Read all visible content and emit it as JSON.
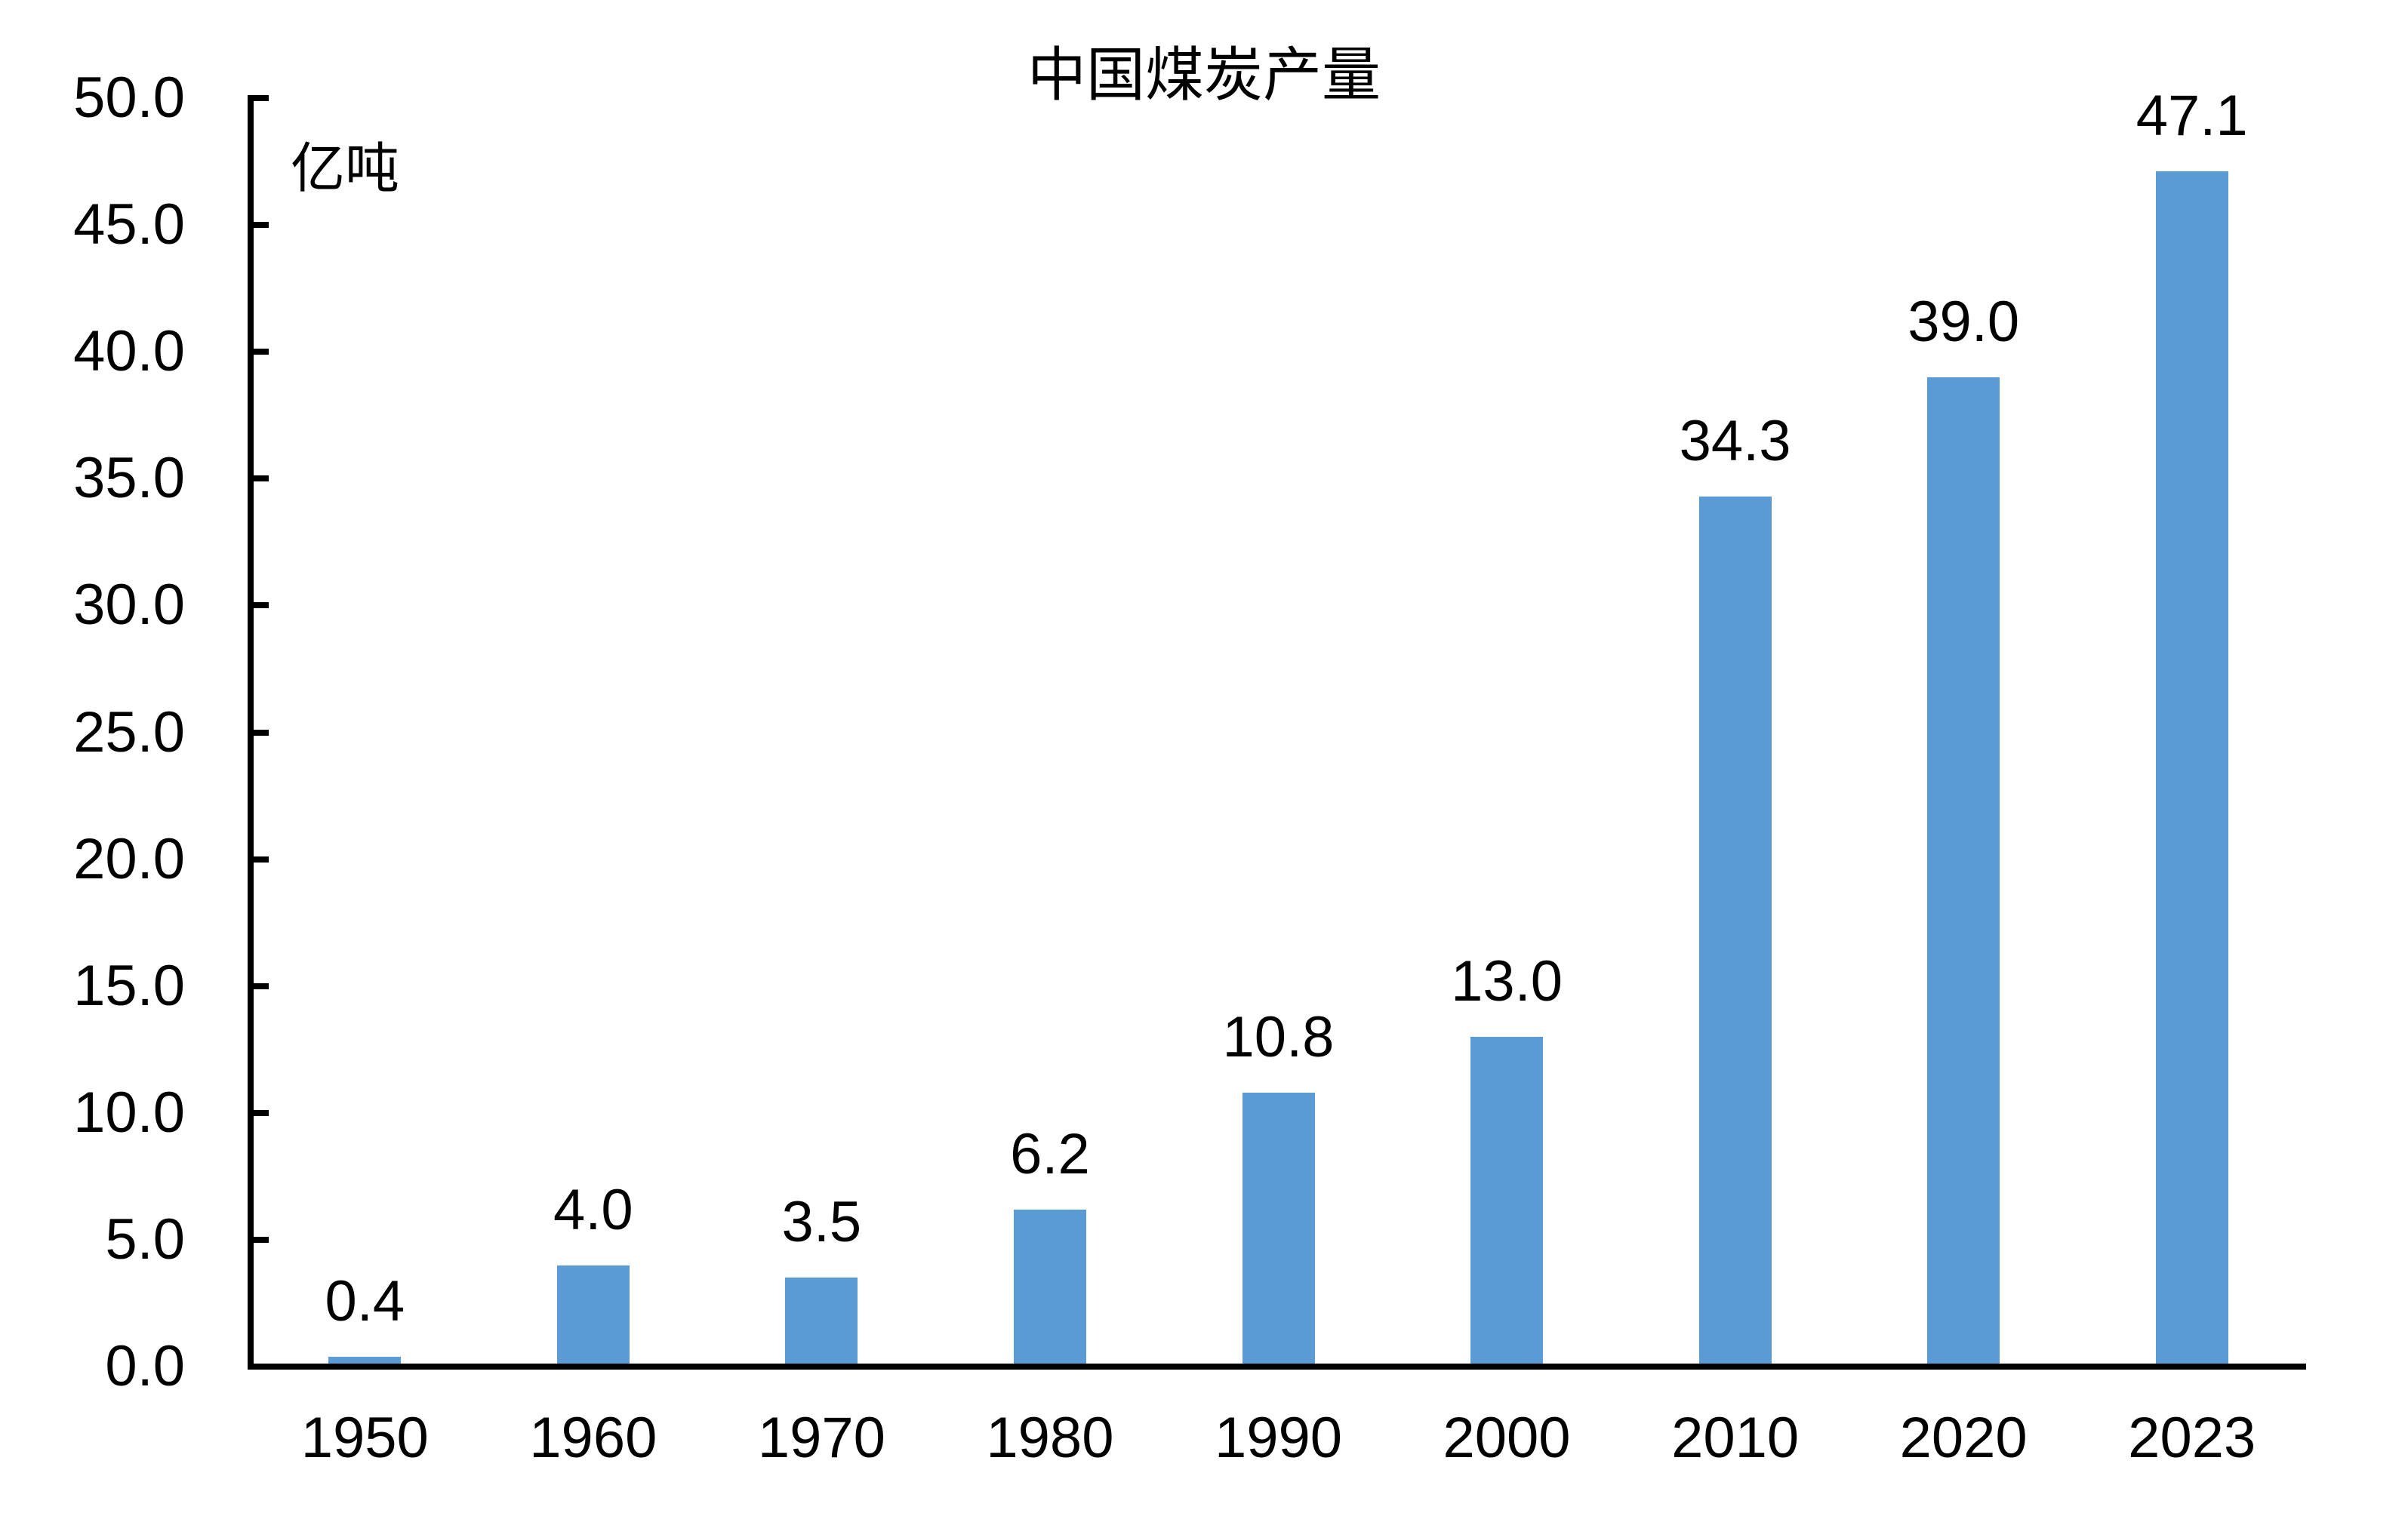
{
  "chart_data": {
    "type": "bar",
    "title": "中国煤炭产量",
    "unit_label": "亿吨",
    "categories": [
      "1950",
      "1960",
      "1970",
      "1980",
      "1990",
      "2000",
      "2010",
      "2020",
      "2023"
    ],
    "values": [
      0.4,
      4.0,
      3.5,
      6.2,
      10.8,
      13.0,
      34.3,
      39.0,
      47.1
    ],
    "value_labels": [
      "0.4",
      "4.0",
      "3.5",
      "6.2",
      "10.8",
      "13.0",
      "34.3",
      "39.0",
      "47.1"
    ],
    "ylim": [
      0,
      50
    ],
    "ytick_labels": [
      "0.0",
      "5.0",
      "10.0",
      "15.0",
      "20.0",
      "25.0",
      "30.0",
      "35.0",
      "40.0",
      "45.0",
      "50.0"
    ],
    "xlabel": "",
    "ylabel": "亿吨",
    "grid": "off",
    "legend": "none",
    "bar_color": "#5B9BD5",
    "axis_color": "#000000",
    "text_color": "#000000",
    "background_color": "#FFFFFF"
  }
}
